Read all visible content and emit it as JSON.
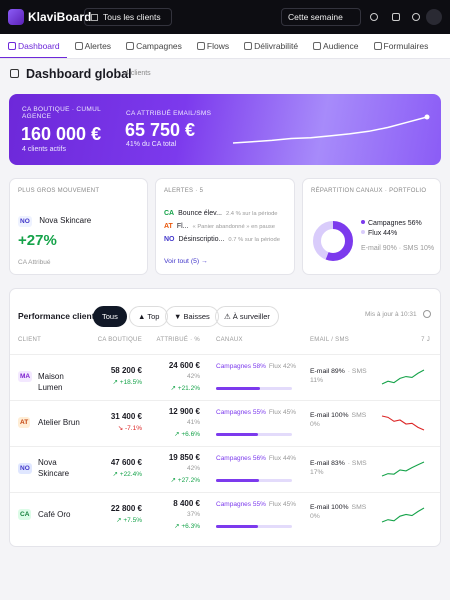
{
  "topbar": {
    "brand": "KlaviBoard",
    "client_select": "Tous les clients",
    "period": "Cette semaine"
  },
  "nav": [
    "Dashboard",
    "Alertes",
    "Campagnes",
    "Flows",
    "Délivrabilité",
    "Audience",
    "Formulaires"
  ],
  "header": {
    "title": "Dashboard global",
    "count": "4 clients"
  },
  "hero": {
    "boutique_label": "CA BOUTIQUE · CUMUL AGENCE",
    "boutique_value": "160 000 €",
    "boutique_sub": "4 clients actifs",
    "attrib_label": "CA ATTRIBUÉ EMAIL/SMS",
    "attrib_value": "65 750 €",
    "attrib_sub": "41% du CA total",
    "trend": [
      10,
      11,
      12,
      13.5,
      14,
      15.5,
      17,
      19,
      22,
      26,
      30
    ]
  },
  "mover": {
    "title": "PLUS GROS MOUVEMENT",
    "tag": "NO",
    "name": "Nova Skincare",
    "delta": "+27%",
    "metric": "CA Attribué"
  },
  "alerts": {
    "title": "ALERTES · 5",
    "items": [
      {
        "tag": "CA",
        "name": "Bounce élev...",
        "detail": "2.4 % sur la période"
      },
      {
        "tag": "AT",
        "name": "Fl...",
        "detail": "« Panier abandonné » en pause"
      },
      {
        "tag": "NO",
        "name": "Désinscriptio...",
        "detail": "0.7 % sur la période"
      }
    ],
    "link": "Voir tout (5) →"
  },
  "channels": {
    "title": "RÉPARTITION CANAUX · PORTFOLIO",
    "segments": [
      {
        "label": "Campagnes 56%",
        "value": 56,
        "color": "#7c3aed"
      },
      {
        "label": "Flux 44%",
        "value": 44,
        "color": "#d9ccfb"
      }
    ],
    "split": "E-mail 90% · SMS 10%"
  },
  "performance": {
    "title": "Performance client",
    "filters": [
      "Tous",
      "▲ Top",
      "▼ Baisses",
      "⚠ À surveiller"
    ],
    "updated": "Mis à jour à 10:31",
    "columns": [
      "CLIENT",
      "CA BOUTIQUE",
      "ATTRIBUÉ · %",
      "CANAUX",
      "EMAIL / SMS",
      "7 J"
    ],
    "rows": [
      {
        "tag": "MA",
        "name": "Maison Lumen",
        "ca": "58 200 €",
        "ca_delta": "↗ +18.5%",
        "attrib": "24 600 €",
        "attrib_pct": "42%",
        "attrib_delta": "↗ +21.2%",
        "campaigns": {
          "label": "Campagnes 58%",
          "value": 58
        },
        "flux": "Flux 42%",
        "email": "E-mail 89%",
        "sms": "· SMS 11%",
        "trend": [
          3,
          3.6,
          3.3,
          4.2,
          4.6,
          4.4,
          5.3,
          6
        ],
        "trend_color": "#16a34a"
      },
      {
        "tag": "AT",
        "name": "Atelier Brun",
        "ca": "31 400 €",
        "ca_delta": "↘ -7.1%",
        "attrib": "12 900 €",
        "attrib_pct": "41%",
        "attrib_delta": "↗ +6.6%",
        "campaigns": {
          "label": "Campagnes 55%",
          "value": 55
        },
        "flux": "Flux 45%",
        "email": "E-mail 100%",
        "sms": "SMS 0%",
        "trend": [
          6,
          5.8,
          5.2,
          5.4,
          4.8,
          4.9,
          4.3,
          3.9
        ],
        "trend_color": "#dc2626"
      },
      {
        "tag": "NO",
        "name": "Nova Skincare",
        "ca": "47 600 €",
        "ca_delta": "↗ +22.4%",
        "attrib": "19 850 €",
        "attrib_pct": "42%",
        "attrib_delta": "↗ +27.2%",
        "campaigns": {
          "label": "Campagnes 56%",
          "value": 56
        },
        "flux": "Flux 44%",
        "email": "E-mail 83%",
        "sms": "· SMS 17%",
        "trend": [
          3,
          3.5,
          3.4,
          4.3,
          4.1,
          4.8,
          5.4,
          6
        ],
        "trend_color": "#16a34a"
      },
      {
        "tag": "CA",
        "name": "Café Oro",
        "ca": "22 800 €",
        "ca_delta": "↗ +7.5%",
        "attrib": "8 400 €",
        "attrib_pct": "37%",
        "attrib_delta": "↗ +6.3%",
        "campaigns": {
          "label": "Campagnes 55%",
          "value": 55
        },
        "flux": "Flux 45%",
        "email": "E-mail 100%",
        "sms": "SMS 0%",
        "trend": [
          3.2,
          3.6,
          3.4,
          4.2,
          4.5,
          4.3,
          5,
          5.6
        ],
        "trend_color": "#16a34a"
      }
    ]
  }
}
